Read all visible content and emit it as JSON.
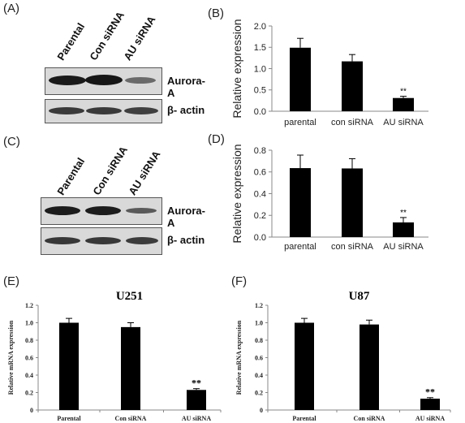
{
  "panels": {
    "A": "(A)",
    "B": "(B)",
    "C": "(C)",
    "D": "(D)",
    "E": "(E)",
    "F": "(F)"
  },
  "blot_A": {
    "lanes": [
      "Parental",
      "Con siRNA",
      "AU siRNA"
    ],
    "rows": [
      "Aurora-A",
      "β- actin"
    ]
  },
  "blot_C": {
    "lanes": [
      "Parental",
      "Con siRNA",
      "AU siRNA"
    ],
    "rows": [
      "Aurora-A",
      "β- actin"
    ]
  },
  "colors": {
    "bar": "#000000",
    "axis": "#888888",
    "text": "#222222"
  },
  "chart_data": [
    {
      "id": "B",
      "type": "bar",
      "categories": [
        "parental",
        "con siRNA",
        "AU siRNA"
      ],
      "values": [
        1.49,
        1.17,
        0.31
      ],
      "errors": [
        0.22,
        0.16,
        0.04
      ],
      "annotations": [
        "",
        "",
        "**"
      ],
      "title": "",
      "xlabel": "",
      "ylabel": "Relative expression",
      "ylim": [
        0,
        2.0
      ],
      "yticks": [
        "0.0",
        "0.5",
        "1.0",
        "1.5",
        "2.0"
      ]
    },
    {
      "id": "D",
      "type": "bar",
      "categories": [
        "parental",
        "con siRNA",
        "AU siRNA"
      ],
      "values": [
        0.635,
        0.632,
        0.135
      ],
      "errors": [
        0.12,
        0.09,
        0.045
      ],
      "annotations": [
        "",
        "",
        "**"
      ],
      "title": "",
      "xlabel": "",
      "ylabel": "Relative expression",
      "ylim": [
        0,
        0.8
      ],
      "yticks": [
        "0.0",
        "0.2",
        "0.4",
        "0.6",
        "0.8"
      ]
    },
    {
      "id": "E",
      "type": "bar",
      "categories": [
        "Parental",
        "Con siRNA",
        "AU siRNA"
      ],
      "values": [
        1.0,
        0.95,
        0.23
      ],
      "errors": [
        0.05,
        0.05,
        0.015
      ],
      "annotations": [
        "",
        "",
        "**"
      ],
      "title": "U251",
      "xlabel": "",
      "ylabel": "Relative mRNA expression",
      "ylim": [
        0,
        1.2
      ],
      "yticks": [
        "0",
        "0.2",
        "0.4",
        "0.6",
        "0.8",
        "1.0",
        "1.2"
      ]
    },
    {
      "id": "F",
      "type": "bar",
      "categories": [
        "Parental",
        "Con siRNA",
        "AU siRNA"
      ],
      "values": [
        1.0,
        0.98,
        0.13
      ],
      "errors": [
        0.05,
        0.05,
        0.012
      ],
      "annotations": [
        "",
        "",
        "**"
      ],
      "title": "U87",
      "xlabel": "",
      "ylabel": "Relative mRNA expression",
      "ylim": [
        0,
        1.2
      ],
      "yticks": [
        "0",
        "0.2",
        "0.4",
        "0.6",
        "0.8",
        "1.0",
        "1.2"
      ]
    }
  ]
}
